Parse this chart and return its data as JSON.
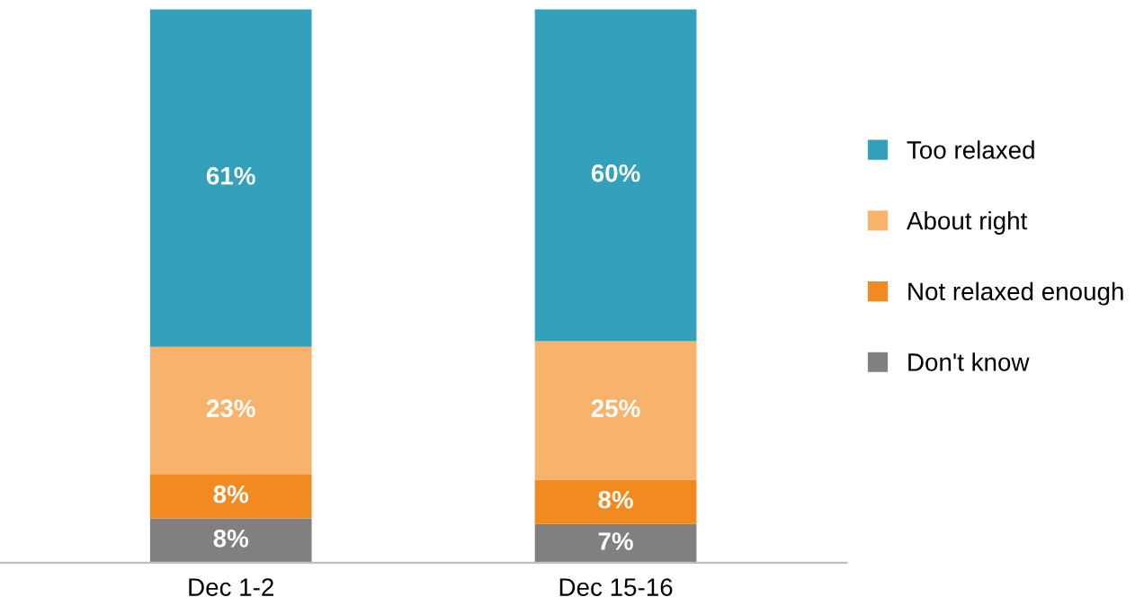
{
  "chart_data": {
    "type": "bar",
    "stacked": true,
    "categories": [
      "Dec 1-2",
      "Dec 15-16"
    ],
    "series": [
      {
        "name": "Don't know",
        "color": "#808080",
        "values": [
          8,
          7
        ],
        "value_labels": [
          "8%",
          "7%"
        ]
      },
      {
        "name": "Not relaxed enough",
        "color": "#f28a22",
        "values": [
          8,
          8
        ],
        "value_labels": [
          "8%",
          "8%"
        ]
      },
      {
        "name": "About right",
        "color": "#f7b36b",
        "values": [
          23,
          25
        ],
        "value_labels": [
          "23%",
          "25%"
        ]
      },
      {
        "name": "Too relaxed",
        "color": "#33a0bc",
        "values": [
          61,
          60
        ],
        "value_labels": [
          "61%",
          "60%"
        ]
      }
    ],
    "legend": "right",
    "grid": false
  }
}
